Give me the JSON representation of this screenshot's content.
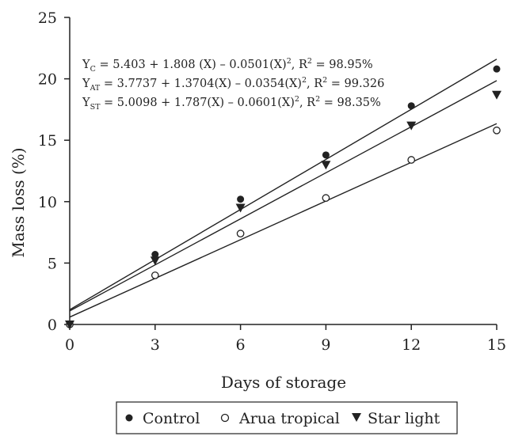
{
  "chart_data": {
    "type": "scatter",
    "xlabel": "Days of storage",
    "ylabel": "Mass loss (%)",
    "xlim": [
      0,
      15
    ],
    "ylim": [
      0,
      25
    ],
    "xticks": [
      0,
      3,
      6,
      9,
      12,
      15
    ],
    "yticks": [
      0,
      5,
      10,
      15,
      20,
      25
    ],
    "grid": false,
    "legend_position": "bottom",
    "x": [
      0,
      3,
      6,
      9,
      12,
      15
    ],
    "series": [
      {
        "name": "Control",
        "marker": "filled-circle",
        "color": "#222222",
        "values": [
          0,
          5.7,
          10.2,
          13.8,
          17.8,
          20.8
        ],
        "fit": {
          "a": 1.2,
          "b": 1.36
        }
      },
      {
        "name": "Arua tropical",
        "marker": "open-circle",
        "color": "#222222",
        "values": [
          0,
          4.0,
          7.4,
          10.3,
          13.4,
          15.8
        ],
        "fit": {
          "a": 0.6,
          "b": 1.05
        }
      },
      {
        "name": "Star light",
        "marker": "filled-triangle-down",
        "color": "#222222",
        "values": [
          0,
          5.2,
          9.5,
          13.0,
          16.2,
          18.7
        ],
        "fit": {
          "a": 1.1,
          "b": 1.25
        }
      }
    ],
    "equations": [
      {
        "label": "Y",
        "sub": "C",
        "body": " = 5.403 + 1.808 (X) – 0.0501(X)",
        "sup": "2",
        "r_label": ", R",
        "r_sup": "2",
        "r_value": " = 98.95%"
      },
      {
        "label": "Y",
        "sub": "AT",
        "body": " = 3.7737 + 1.3704(X) – 0.0354(X)",
        "sup": "2",
        "r_label": ", R",
        "r_sup": "2",
        "r_value": " = 99.326"
      },
      {
        "label": "Y",
        "sub": "ST",
        "body": " = 5.0098 + 1.787(X) – 0.0601(X)",
        "sup": "2",
        "r_label": ", R",
        "r_sup": "2",
        "r_value": " = 98.35%"
      }
    ]
  }
}
